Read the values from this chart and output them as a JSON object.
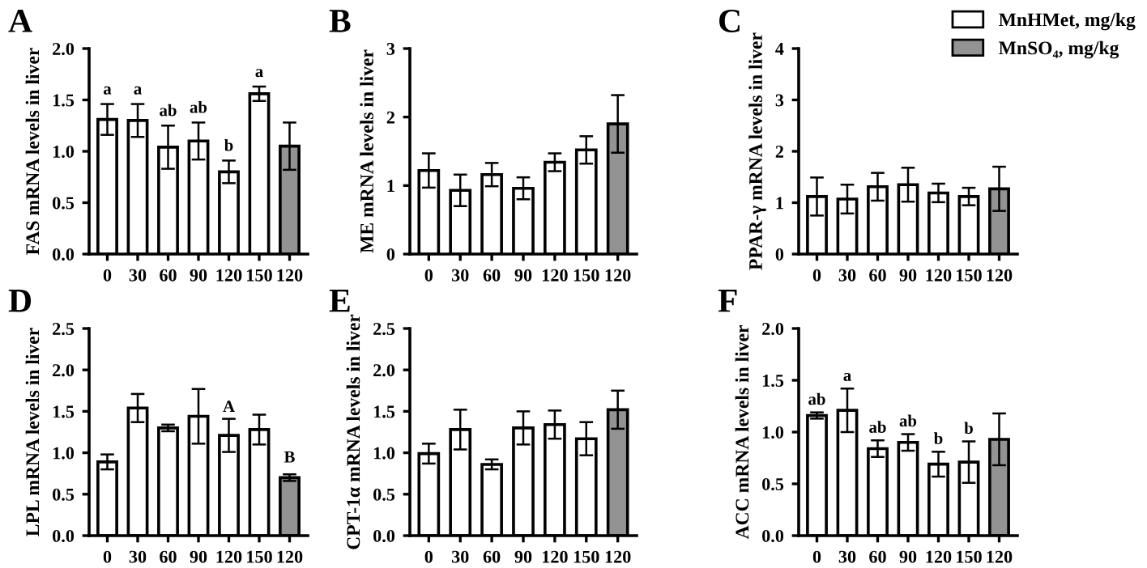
{
  "chart_data": [
    {
      "type": "bar",
      "title": "A",
      "ylabel": "FAS mRNA levels in liver",
      "categories": [
        "0",
        "30",
        "60",
        "90",
        "120",
        "150",
        "120"
      ],
      "ylim": [
        0,
        2.0
      ],
      "yticks": [
        {
          "value": 0,
          "label": "0.0"
        },
        0.5,
        {
          "value": 1,
          "label": "1.0"
        },
        1.5,
        {
          "value": 2,
          "label": "2.0"
        }
      ],
      "grid": false,
      "series": [
        {
          "color": "#ffffff",
          "values": [
            1.31,
            1.3,
            1.04,
            1.1,
            0.8,
            1.56,
            null
          ],
          "errors": [
            0.15,
            0.16,
            0.21,
            0.18,
            0.11,
            0.07,
            null
          ]
        },
        {
          "color": "#939393",
          "values": [
            null,
            null,
            null,
            null,
            null,
            null,
            1.05
          ],
          "errors": [
            null,
            null,
            null,
            null,
            null,
            null,
            0.23
          ]
        }
      ],
      "annotations": [
        {
          "text": "a",
          "x": "0",
          "y": 1.52
        },
        {
          "text": "a",
          "x": "30",
          "y": 1.52
        },
        {
          "text": "ab",
          "x": "60",
          "y": 1.31
        },
        {
          "text": "ab",
          "x": "90",
          "y": 1.34
        },
        {
          "text": "b",
          "x": "120",
          "y": 0.97
        },
        {
          "text": "a",
          "x": "150",
          "y": 1.69
        }
      ]
    },
    {
      "type": "bar",
      "title": "B",
      "ylabel": "ME mRNA levels in liver",
      "categories": [
        "0",
        "30",
        "60",
        "90",
        "120",
        "150",
        "120"
      ],
      "ylim": [
        0,
        3
      ],
      "yticks": [
        0,
        1,
        2,
        3
      ],
      "grid": false,
      "series": [
        {
          "color": "#ffffff",
          "values": [
            1.22,
            0.93,
            1.16,
            0.96,
            1.34,
            1.52,
            null
          ],
          "errors": [
            0.25,
            0.23,
            0.17,
            0.16,
            0.13,
            0.2,
            null
          ]
        },
        {
          "color": "#939393",
          "values": [
            null,
            null,
            null,
            null,
            null,
            null,
            1.9
          ],
          "errors": [
            null,
            null,
            null,
            null,
            null,
            null,
            0.42
          ]
        }
      ]
    },
    {
      "type": "bar",
      "title": "C",
      "ylabel": "PPAR-γ mRNA levels in liver",
      "categories": [
        "0",
        "30",
        "60",
        "90",
        "120",
        "150",
        "120"
      ],
      "ylim": [
        0,
        4
      ],
      "yticks": [
        0,
        1,
        2,
        3,
        4
      ],
      "legend": "top right",
      "grid": false,
      "series": [
        {
          "name": "MnHMet, mg/kg",
          "color": "#ffffff",
          "values": [
            1.12,
            1.07,
            1.31,
            1.35,
            1.19,
            1.12,
            null
          ],
          "errors": [
            0.37,
            0.28,
            0.27,
            0.33,
            0.18,
            0.17,
            null
          ]
        },
        {
          "name": "MnSO₄, mg/kg",
          "color": "#939393",
          "values": [
            null,
            null,
            null,
            null,
            null,
            null,
            1.27
          ],
          "errors": [
            null,
            null,
            null,
            null,
            null,
            null,
            0.43
          ]
        }
      ]
    },
    {
      "type": "bar",
      "title": "D",
      "ylabel": "LPL mRNA levels in liver",
      "categories": [
        "0",
        "30",
        "60",
        "90",
        "120",
        "150",
        "120"
      ],
      "ylim": [
        0,
        2.5
      ],
      "yticks": [
        {
          "value": 0,
          "label": "0.0"
        },
        0.5,
        {
          "value": 1,
          "label": "1.0"
        },
        1.5,
        {
          "value": 2,
          "label": "2.0"
        },
        2.5
      ],
      "grid": false,
      "series": [
        {
          "color": "#ffffff",
          "values": [
            0.89,
            1.54,
            1.3,
            1.44,
            1.21,
            1.28,
            null
          ],
          "errors": [
            0.09,
            0.17,
            0.04,
            0.33,
            0.2,
            0.18,
            null
          ]
        },
        {
          "color": "#939393",
          "values": [
            null,
            null,
            null,
            null,
            null,
            null,
            0.7
          ],
          "errors": [
            null,
            null,
            null,
            null,
            null,
            null,
            0.04
          ]
        }
      ],
      "annotations": [
        {
          "text": "A",
          "x": "120",
          "y": 1.45
        },
        "B"
      ]
    },
    {
      "type": "bar",
      "title": "E",
      "ylabel": "CPT-1α mRNA levels in liver",
      "categories": [
        "0",
        "30",
        "60",
        "90",
        "120",
        "150",
        "120"
      ],
      "ylim": [
        0,
        2.5
      ],
      "yticks": [
        {
          "value": 0,
          "label": "0.0"
        },
        0.5,
        {
          "value": 1,
          "label": "1.0"
        },
        1.5,
        {
          "value": 2,
          "label": "2.0"
        },
        2.5
      ],
      "grid": false,
      "series": [
        {
          "color": "#ffffff",
          "values": [
            0.99,
            1.28,
            0.86,
            1.3,
            1.34,
            1.17,
            null
          ],
          "errors": [
            0.12,
            0.24,
            0.06,
            0.2,
            0.17,
            0.2,
            null
          ]
        },
        {
          "color": "#939393",
          "values": [
            null,
            null,
            null,
            null,
            null,
            null,
            1.52
          ],
          "errors": [
            null,
            null,
            null,
            null,
            null,
            null,
            0.23
          ]
        }
      ]
    },
    {
      "type": "bar",
      "title": "F",
      "ylabel": "ACC mRNA levels in liver",
      "categories": [
        "0",
        "30",
        "60",
        "90",
        "120",
        "150",
        "120"
      ],
      "ylim": [
        0,
        2.0
      ],
      "yticks": [
        {
          "value": 0,
          "label": "0.0"
        },
        0.5,
        {
          "value": 1,
          "label": "1.0"
        },
        1.5,
        {
          "value": 2,
          "label": "2.0"
        }
      ],
      "grid": false,
      "series": [
        {
          "color": "#ffffff",
          "values": [
            1.16,
            1.21,
            0.84,
            0.9,
            0.69,
            0.71,
            null
          ],
          "errors": [
            0.03,
            0.21,
            0.08,
            0.08,
            0.12,
            0.2,
            null
          ]
        },
        {
          "color": "#939393",
          "values": [
            null,
            null,
            null,
            null,
            null,
            null,
            0.93
          ],
          "errors": [
            null,
            null,
            null,
            null,
            null,
            null,
            0.25
          ]
        }
      ],
      "annotations": [
        {
          "text": "ab",
          "x": "0",
          "y": 1.23
        },
        {
          "text": "a",
          "x": "30",
          "y": 1.46
        },
        {
          "text": "ab",
          "x": "60",
          "y": 0.96
        },
        {
          "text": "ab",
          "x": "90",
          "y": 1.02
        },
        {
          "text": "b",
          "x": "120",
          "y": 0.85
        },
        {
          "text": "b",
          "x": "150",
          "y": 0.95
        }
      ]
    }
  ]
}
